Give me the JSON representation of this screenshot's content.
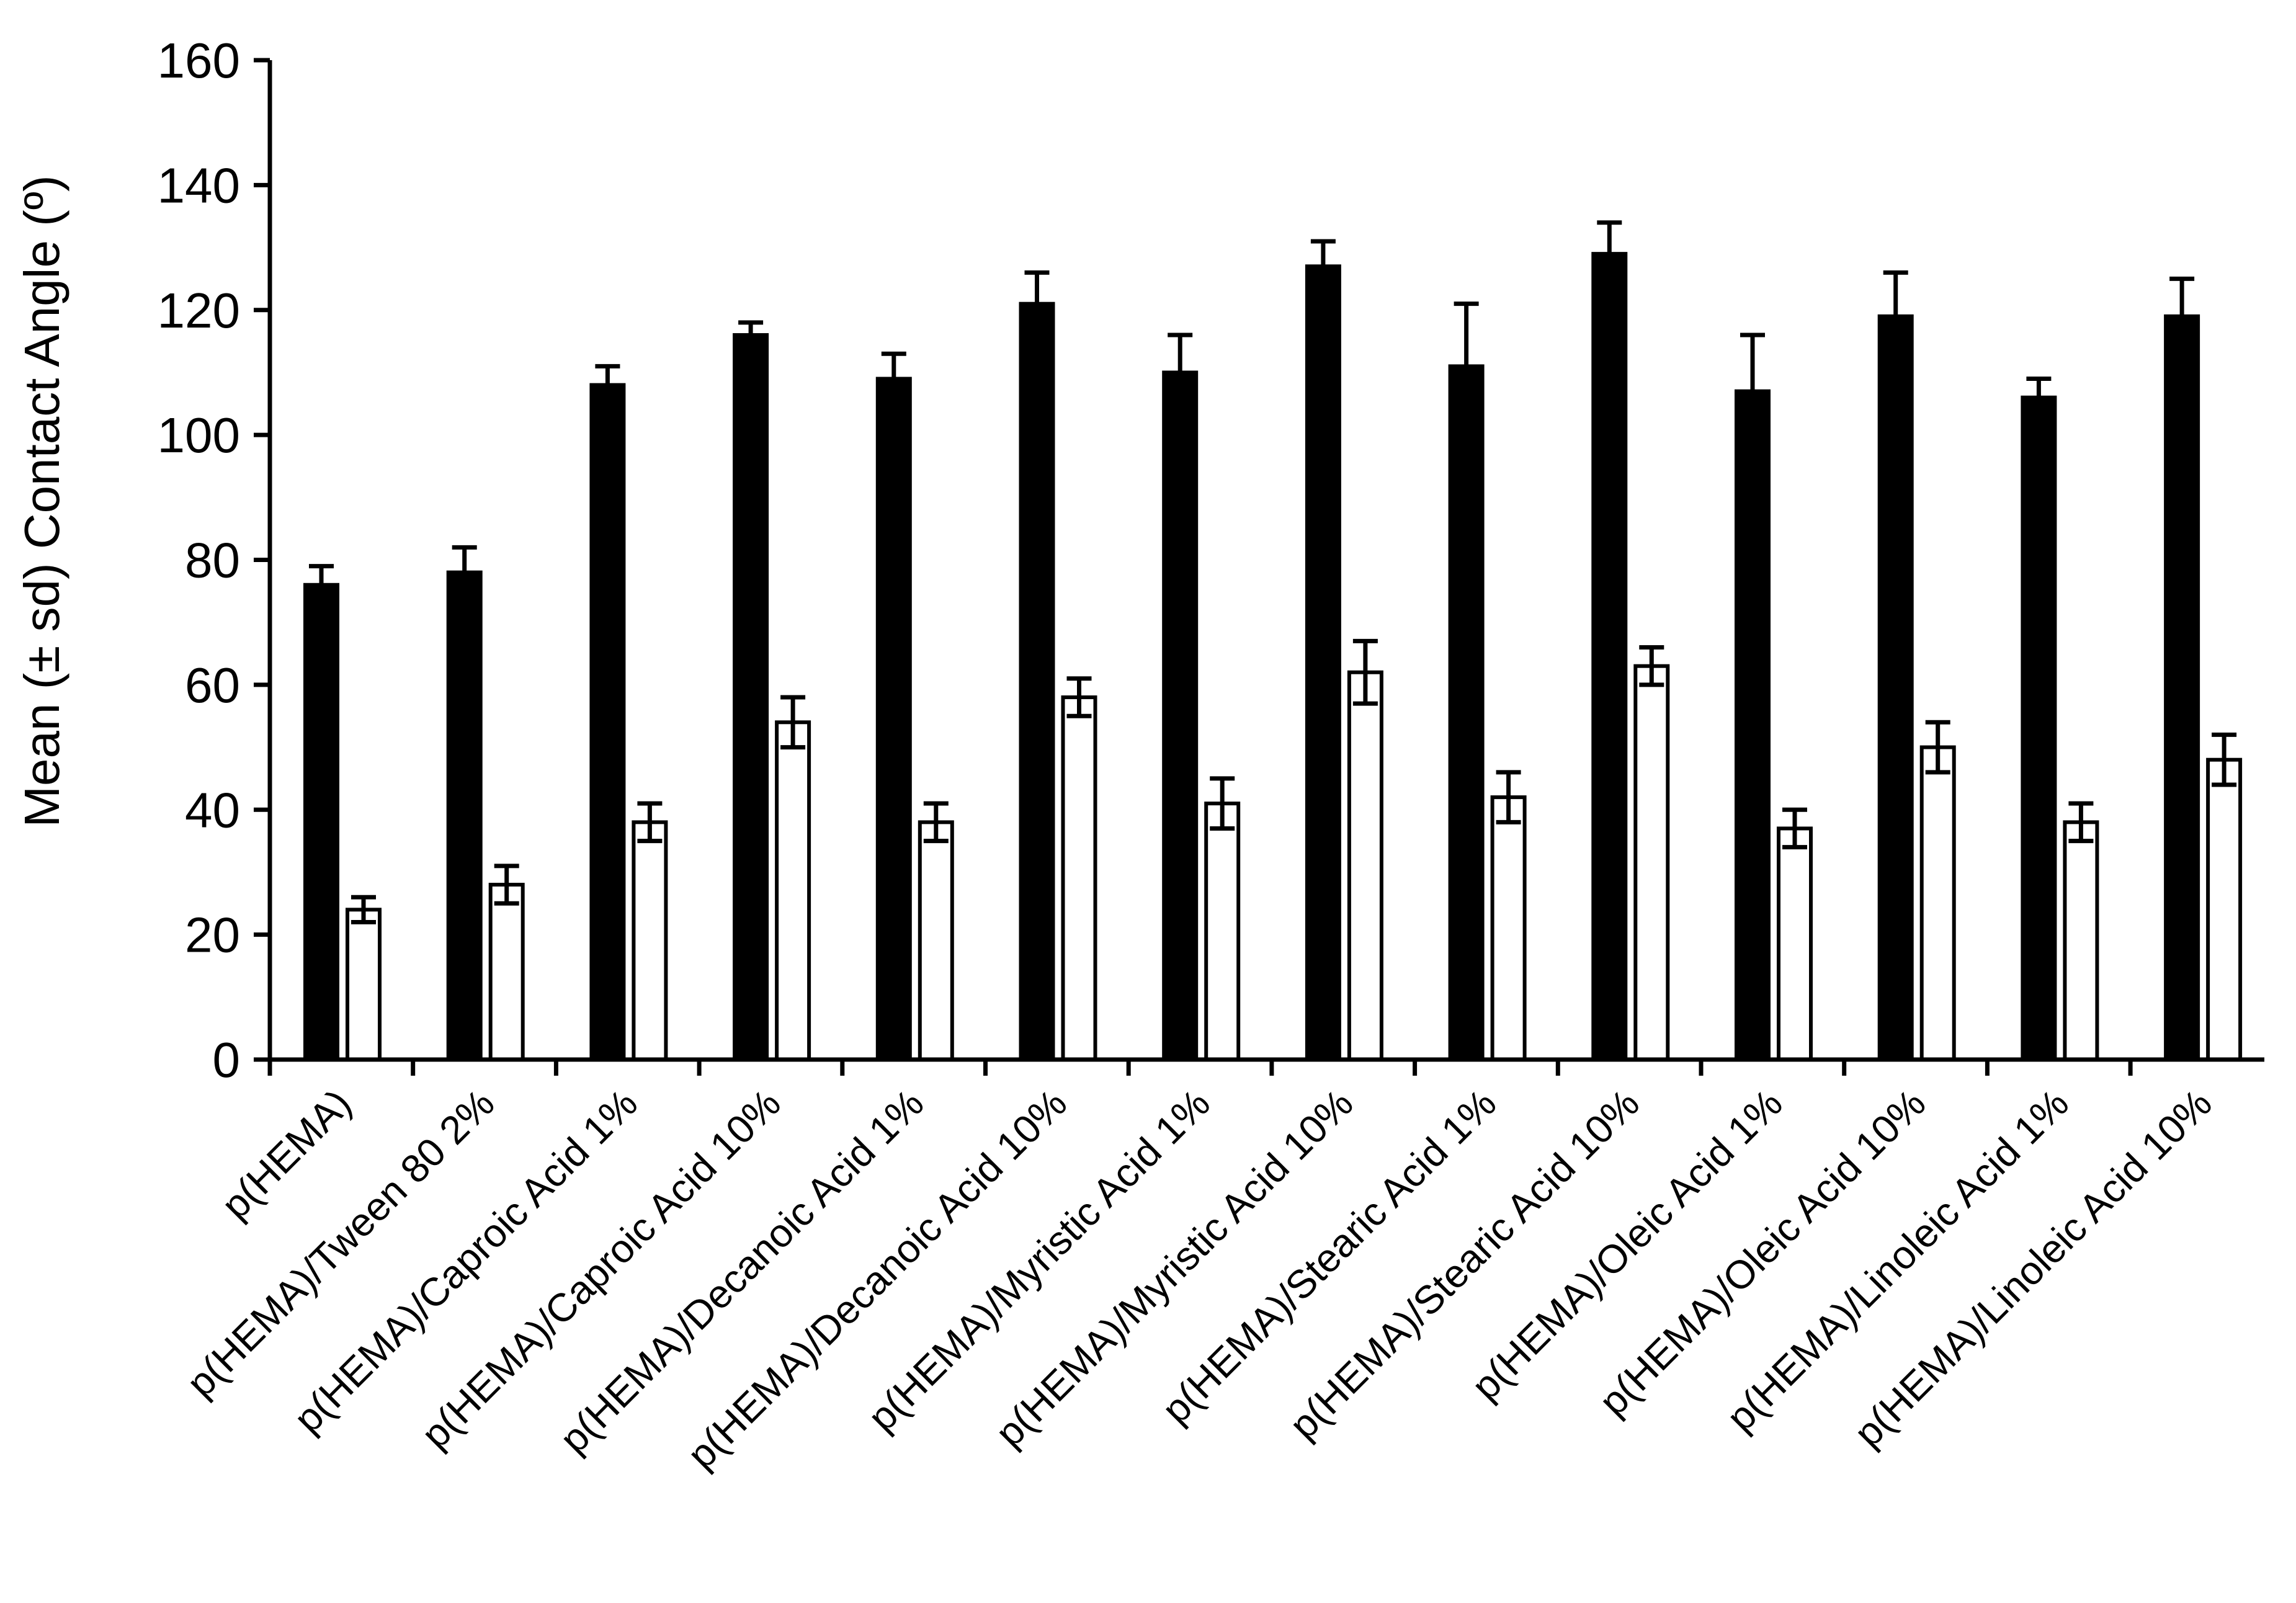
{
  "chart_data": {
    "type": "bar",
    "title": "",
    "xlabel": "",
    "ylabel": "Mean (± sd) Contact Angle (º)",
    "ylim": [
      0,
      160
    ],
    "yticks": [
      0,
      20,
      40,
      60,
      80,
      100,
      120,
      140,
      160
    ],
    "grid": false,
    "legend": "none",
    "categories": [
      "p(HEMA)",
      "p(HEMA)/Tween 80 2%",
      "p(HEMA)/Caproic Acid 1%",
      "p(HEMA)/Caproic Acid 10%",
      "p(HEMA)/Decanoic Acid 1%",
      "p(HEMA)/Decanoic Acid 10%",
      "p(HEMA)/Myristic Acid 1%",
      "p(HEMA)/Myristic Acid 10%",
      "p(HEMA)/Stearic Acid 1%",
      "p(HEMA)/Stearic Acid 10%",
      "p(HEMA)/Oleic Acid 1%",
      "p(HEMA)/Oleic Acid 10%",
      "p(HEMA)/Linoleic Acid 1%",
      "p(HEMA)/Linoleic Acid 10%"
    ],
    "series": [
      {
        "fill": "#000000",
        "values": [
          76,
          78,
          108,
          116,
          109,
          121,
          110,
          127,
          111,
          129,
          107,
          119,
          106,
          119
        ],
        "errors": [
          3,
          4,
          3,
          2,
          4,
          5,
          6,
          4,
          10,
          5,
          9,
          7,
          3,
          6
        ]
      },
      {
        "fill": "#ffffff",
        "values": [
          24,
          28,
          38,
          54,
          38,
          58,
          41,
          62,
          42,
          63,
          37,
          50,
          38,
          48
        ],
        "errors": [
          2,
          3,
          3,
          4,
          3,
          3,
          4,
          5,
          4,
          3,
          3,
          4,
          3,
          4
        ]
      }
    ]
  }
}
